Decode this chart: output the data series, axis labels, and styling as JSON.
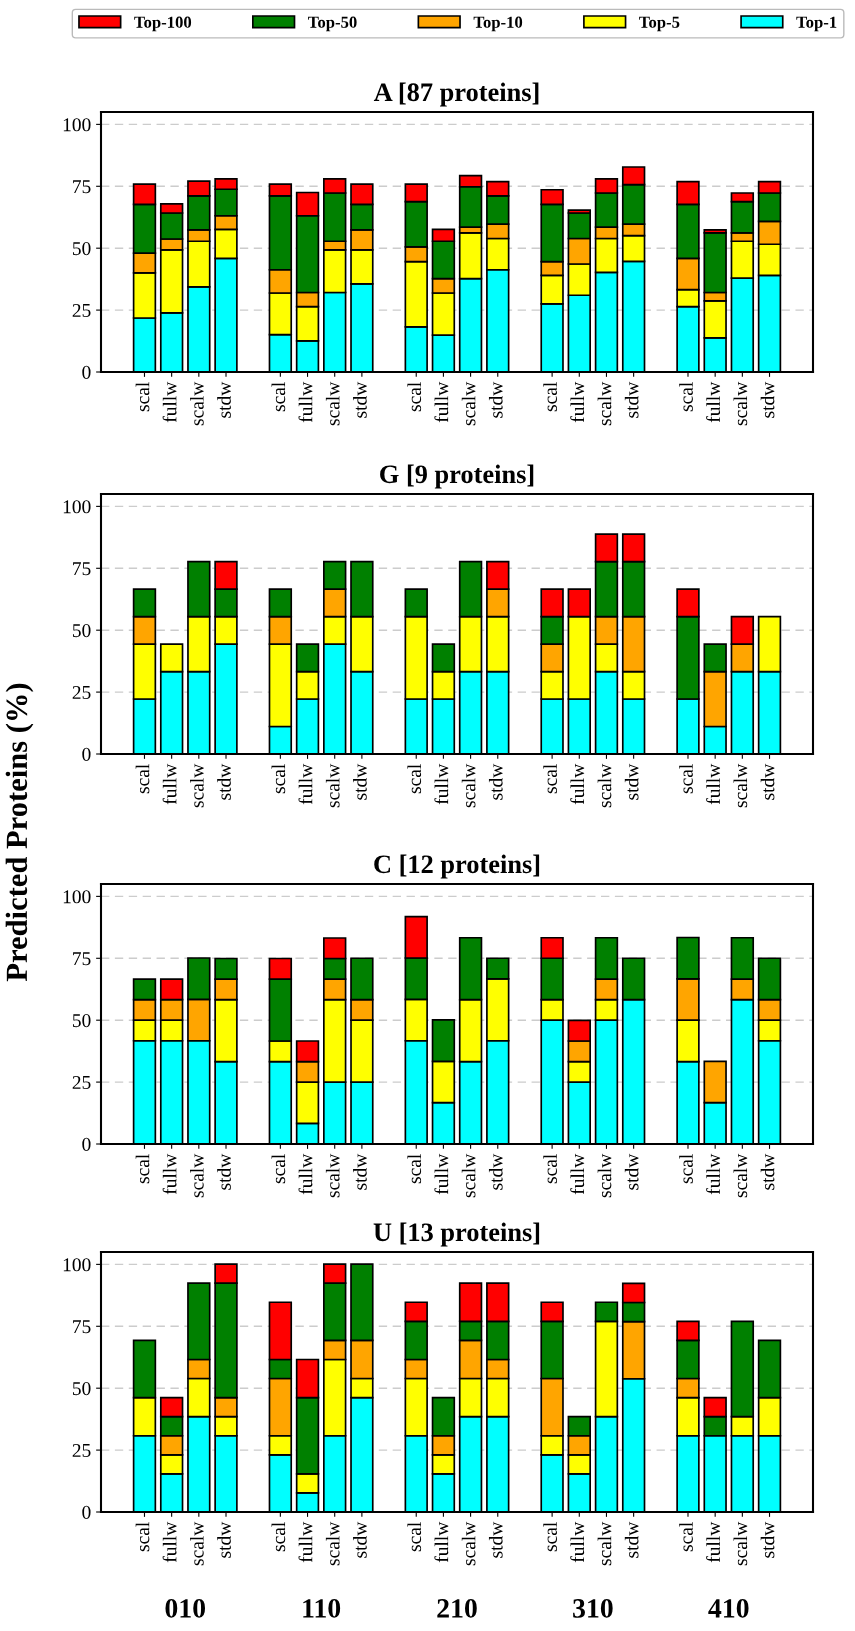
{
  "chart_data": [
    {
      "type": "bar",
      "stacked": true,
      "title": "A [87 proteins]",
      "legend": "top",
      "grid": "y",
      "categories": [
        "scal",
        "fullw",
        "scalw",
        "stdw",
        null,
        "scal",
        "fullw",
        "scalw",
        "stdw",
        null,
        "scal",
        "fullw",
        "scalw",
        "stdw",
        null,
        "scal",
        "fullw",
        "scalw",
        "stdw",
        null,
        "scal",
        "fullw",
        "scalw",
        "stdw"
      ],
      "ylim": [
        0,
        105
      ],
      "yticks": [
        0,
        25,
        50,
        75,
        100
      ],
      "series": [
        {
          "name": "Top-1",
          "color": "#00ffff",
          "values": [
            21.8,
            23.9,
            34.4,
            45.9,
            null,
            15.1,
            12.6,
            32.1,
            35.6,
            null,
            18.2,
            14.9,
            37.7,
            41.3,
            null,
            27.5,
            31.0,
            40.2,
            44.7,
            null,
            26.4,
            13.8,
            37.9,
            39.0
          ]
        },
        {
          "name": "Top-5",
          "color": "#ffff00",
          "values": [
            18.2,
            25.4,
            18.4,
            11.7,
            null,
            16.8,
            13.8,
            17.2,
            13.7,
            null,
            26.4,
            17.0,
            18.5,
            12.6,
            null,
            11.5,
            12.6,
            13.7,
            10.4,
            null,
            6.9,
            14.9,
            14.9,
            12.6
          ]
        },
        {
          "name": "Top-10",
          "color": "#ffa500",
          "values": [
            8.0,
            4.4,
            4.6,
            5.5,
            null,
            9.4,
            5.7,
            3.5,
            8.1,
            null,
            5.9,
            5.8,
            2.3,
            5.8,
            null,
            5.6,
            10.3,
            4.6,
            4.6,
            null,
            12.6,
            3.4,
            3.4,
            9.2
          ]
        },
        {
          "name": "Top-50",
          "color": "#008000",
          "values": [
            19.7,
            10.5,
            13.7,
            10.7,
            null,
            29.8,
            31.0,
            19.5,
            10.3,
            null,
            18.3,
            15.1,
            16.3,
            11.4,
            null,
            23.1,
            10.3,
            13.8,
            16.0,
            null,
            21.8,
            24.1,
            12.6,
            11.5
          ]
        },
        {
          "name": "Top-100",
          "color": "#ff0000",
          "values": [
            8.2,
            3.7,
            6.0,
            4.2,
            null,
            4.8,
            9.4,
            5.7,
            8.2,
            null,
            7.1,
            4.8,
            4.5,
            5.8,
            null,
            5.9,
            1.2,
            5.7,
            7.1,
            null,
            9.2,
            1.2,
            3.5,
            4.6
          ]
        }
      ]
    },
    {
      "type": "bar",
      "stacked": true,
      "title": "G [9 proteins]",
      "grid": "y",
      "categories": [
        "scal",
        "fullw",
        "scalw",
        "stdw",
        null,
        "scal",
        "fullw",
        "scalw",
        "stdw",
        null,
        "scal",
        "fullw",
        "scalw",
        "stdw",
        null,
        "scal",
        "fullw",
        "scalw",
        "stdw",
        null,
        "scal",
        "fullw",
        "scalw",
        "stdw"
      ],
      "ylim": [
        0,
        105
      ],
      "yticks": [
        0,
        25,
        50,
        75,
        100
      ],
      "series": [
        {
          "color": "#00ffff",
          "values": [
            22.2,
            33.3,
            33.3,
            44.4,
            null,
            11.1,
            22.2,
            44.4,
            33.3,
            null,
            22.2,
            22.2,
            33.3,
            33.3,
            null,
            22.2,
            22.2,
            33.3,
            22.2,
            null,
            22.2,
            11.1,
            33.3,
            33.3
          ]
        },
        {
          "color": "#ffff00",
          "values": [
            22.2,
            11.1,
            22.2,
            11.1,
            null,
            33.3,
            11.1,
            11.1,
            22.2,
            null,
            33.3,
            11.1,
            22.2,
            22.2,
            null,
            11.1,
            33.3,
            11.1,
            11.1,
            null,
            0,
            0,
            0,
            22.2
          ]
        },
        {
          "color": "#ffa500",
          "values": [
            11.1,
            0,
            0,
            0,
            null,
            11.1,
            0,
            11.1,
            0,
            null,
            0,
            0,
            0,
            11.1,
            null,
            11.1,
            0,
            11.1,
            22.2,
            null,
            0,
            22.2,
            11.1,
            0
          ]
        },
        {
          "color": "#008000",
          "values": [
            11.1,
            0,
            22.2,
            11.1,
            null,
            11.1,
            11.1,
            11.1,
            22.2,
            null,
            11.1,
            11.1,
            22.2,
            0,
            null,
            11.1,
            0,
            22.2,
            22.2,
            null,
            33.3,
            11.1,
            0,
            0
          ]
        },
        {
          "color": "#ff0000",
          "values": [
            0,
            0,
            0,
            11.1,
            null,
            0,
            0,
            0,
            0,
            null,
            0,
            0,
            0,
            11.1,
            null,
            11.1,
            11.1,
            11.1,
            11.1,
            null,
            11.1,
            0,
            11.1,
            0
          ]
        }
      ]
    },
    {
      "type": "bar",
      "stacked": true,
      "title": "C [12 proteins]",
      "ylabel": "Predicted Proteins (%)",
      "grid": "y",
      "categories": [
        "scal",
        "fullw",
        "scalw",
        "stdw",
        null,
        "scal",
        "fullw",
        "scalw",
        "stdw",
        null,
        "scal",
        "fullw",
        "scalw",
        "stdw",
        null,
        "scal",
        "fullw",
        "scalw",
        "stdw",
        null,
        "scal",
        "fullw",
        "scalw",
        "stdw"
      ],
      "ylim": [
        0,
        105
      ],
      "yticks": [
        0,
        25,
        50,
        75,
        100
      ],
      "series": [
        {
          "color": "#00ffff",
          "values": [
            41.7,
            41.7,
            41.7,
            33.3,
            null,
            33.3,
            8.3,
            25,
            25,
            null,
            41.7,
            16.7,
            33.3,
            41.7,
            null,
            50,
            25,
            50,
            58.3,
            null,
            33.3,
            16.7,
            58.3,
            41.7
          ]
        },
        {
          "color": "#ffff00",
          "values": [
            8.3,
            8.3,
            0,
            25,
            null,
            8.3,
            16.7,
            33.3,
            25,
            null,
            16.7,
            16.7,
            25,
            25,
            null,
            8.3,
            8.3,
            8.3,
            0,
            null,
            16.7,
            0,
            0,
            8.3
          ]
        },
        {
          "color": "#ffa500",
          "values": [
            8.3,
            8.3,
            16.7,
            8.3,
            null,
            0,
            8.3,
            8.3,
            8.3,
            null,
            0,
            0,
            0,
            0,
            null,
            0,
            8.3,
            8.3,
            0,
            null,
            16.7,
            16.7,
            8.3,
            8.3
          ]
        },
        {
          "color": "#008000",
          "values": [
            8.3,
            0,
            16.7,
            8.3,
            null,
            25,
            0,
            8.3,
            16.7,
            null,
            16.7,
            16.7,
            25,
            8.3,
            null,
            16.7,
            0,
            16.7,
            16.7,
            null,
            16.7,
            0,
            16.7,
            16.7
          ]
        },
        {
          "color": "#ff0000",
          "values": [
            0,
            8.3,
            0,
            0,
            null,
            8.3,
            8.3,
            8.3,
            0,
            null,
            16.7,
            0,
            0,
            0,
            null,
            8.3,
            8.3,
            0,
            0,
            null,
            0,
            0,
            0,
            0
          ]
        }
      ]
    },
    {
      "type": "bar",
      "stacked": true,
      "title": "U [13 proteins]",
      "grid": "y",
      "annotations": [
        "010",
        "110",
        "210",
        "310",
        "410"
      ],
      "categories": [
        "scal",
        "fullw",
        "scalw",
        "stdw",
        null,
        "scal",
        "fullw",
        "scalw",
        "stdw",
        null,
        "scal",
        "fullw",
        "scalw",
        "stdw",
        null,
        "scal",
        "fullw",
        "scalw",
        "stdw",
        null,
        "scal",
        "fullw",
        "scalw",
        "stdw"
      ],
      "ylim": [
        0,
        105
      ],
      "yticks": [
        0,
        25,
        50,
        75,
        100
      ],
      "series": [
        {
          "color": "#00ffff",
          "values": [
            30.8,
            15.4,
            38.5,
            30.8,
            null,
            23.1,
            7.7,
            30.8,
            46.2,
            null,
            30.8,
            15.4,
            38.5,
            38.5,
            null,
            23.1,
            15.4,
            38.5,
            53.8,
            null,
            30.8,
            30.8,
            30.8,
            30.8
          ]
        },
        {
          "color": "#ffff00",
          "values": [
            15.4,
            7.7,
            15.4,
            7.7,
            null,
            7.7,
            7.7,
            30.8,
            7.7,
            null,
            23.1,
            7.7,
            15.4,
            15.4,
            null,
            7.7,
            7.7,
            38.5,
            0,
            null,
            15.4,
            0,
            7.7,
            15.4
          ]
        },
        {
          "color": "#ffa500",
          "values": [
            0,
            7.7,
            7.7,
            7.7,
            null,
            23.1,
            0,
            7.7,
            15.4,
            null,
            7.7,
            7.7,
            15.4,
            7.7,
            null,
            23.1,
            7.7,
            0,
            23.1,
            null,
            7.7,
            0,
            0,
            0
          ]
        },
        {
          "color": "#008000",
          "values": [
            23.1,
            7.7,
            30.8,
            46.2,
            null,
            7.7,
            30.8,
            23.1,
            30.8,
            null,
            15.4,
            15.4,
            7.7,
            15.4,
            null,
            23.1,
            7.7,
            7.7,
            7.7,
            null,
            15.4,
            7.7,
            38.5,
            23.1
          ]
        },
        {
          "color": "#ff0000",
          "values": [
            0,
            7.7,
            0,
            7.7,
            null,
            23.1,
            15.4,
            7.7,
            0,
            null,
            7.7,
            0,
            15.4,
            15.4,
            null,
            7.7,
            0,
            0,
            7.7,
            null,
            7.7,
            7.7,
            0,
            0
          ]
        }
      ]
    }
  ]
}
